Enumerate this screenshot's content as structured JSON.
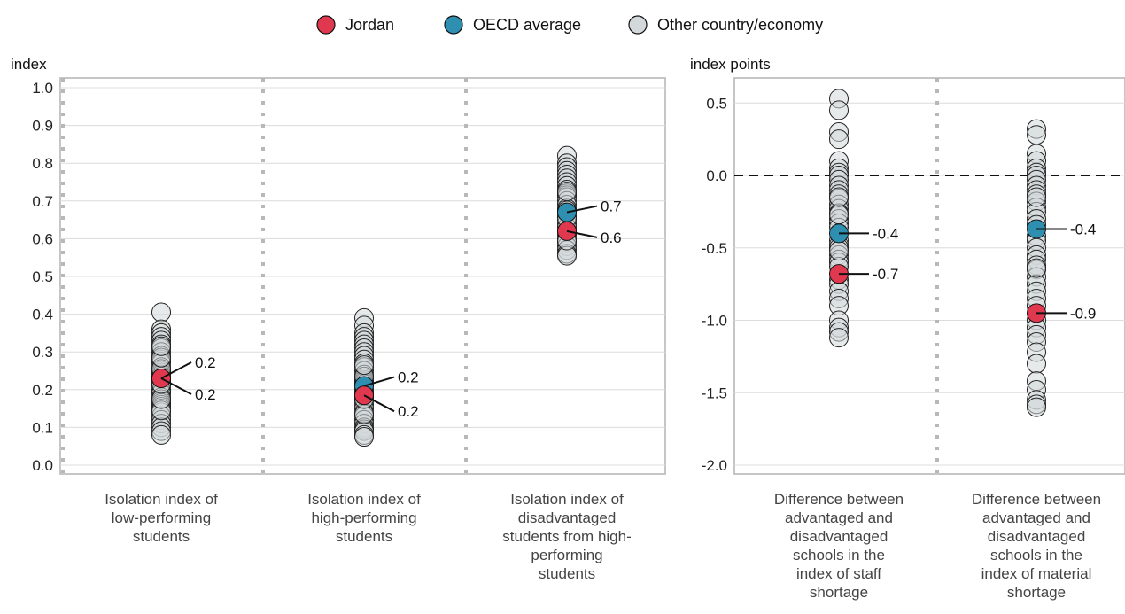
{
  "legend": [
    {
      "label": "Jordan",
      "color": "#e0394f"
    },
    {
      "label": "OECD average",
      "color": "#2f8fb0"
    },
    {
      "label": "Other country/economy",
      "color": "#d3d8da"
    }
  ],
  "colors": {
    "jordan": "#e0394f",
    "oecd": "#2f8fb0",
    "other": "#d3d8da",
    "other_stroke": "#222222"
  },
  "chart_data": [
    {
      "type": "scatter",
      "ylabel": "index",
      "ylim": [
        0,
        1.0
      ],
      "yticks": [
        "0.0",
        "0.1",
        "0.2",
        "0.3",
        "0.4",
        "0.5",
        "0.6",
        "0.7",
        "0.8",
        "0.9",
        "1.0"
      ],
      "grid": true,
      "categories": [
        "Isolation index of low-performing students",
        "Isolation index of high-performing students",
        "Isolation index of disadvantaged students from high-performing students"
      ],
      "category_lines": [
        [
          "Isolation index of",
          "low-performing",
          "students"
        ],
        [
          "Isolation index of",
          "high-performing",
          "students"
        ],
        [
          "Isolation index of",
          "disadvantaged",
          "students from high-",
          "performing",
          "students"
        ]
      ],
      "series": [
        {
          "name": "Jordan",
          "values": [
            0.23,
            0.185,
            0.62
          ],
          "labels": [
            "0.2",
            "0.2",
            "0.6"
          ]
        },
        {
          "name": "OECD average",
          "values": [
            0.23,
            0.21,
            0.67
          ],
          "labels": [
            "0.2",
            "0.2",
            "0.7"
          ]
        }
      ],
      "others": [
        [
          0.405,
          0.36,
          0.35,
          0.34,
          0.33,
          0.32,
          0.31,
          0.3,
          0.29,
          0.28,
          0.275,
          0.27,
          0.26,
          0.25,
          0.245,
          0.24,
          0.235,
          0.225,
          0.22,
          0.21,
          0.2,
          0.195,
          0.19,
          0.18,
          0.17,
          0.165,
          0.16,
          0.155,
          0.15,
          0.14,
          0.13,
          0.12,
          0.11,
          0.1,
          0.09,
          0.08,
          0.145,
          0.175,
          0.215,
          0.255,
          0.285,
          0.315
        ],
        [
          0.39,
          0.37,
          0.35,
          0.34,
          0.33,
          0.32,
          0.31,
          0.3,
          0.29,
          0.28,
          0.27,
          0.26,
          0.25,
          0.24,
          0.23,
          0.225,
          0.22,
          0.215,
          0.2,
          0.195,
          0.19,
          0.18,
          0.17,
          0.16,
          0.15,
          0.14,
          0.13,
          0.12,
          0.11,
          0.1,
          0.095,
          0.09,
          0.08,
          0.075,
          0.135,
          0.175,
          0.235,
          0.265
        ],
        [
          0.82,
          0.8,
          0.79,
          0.78,
          0.77,
          0.76,
          0.75,
          0.74,
          0.73,
          0.72,
          0.715,
          0.71,
          0.7,
          0.69,
          0.68,
          0.675,
          0.66,
          0.65,
          0.64,
          0.63,
          0.62,
          0.61,
          0.6,
          0.59,
          0.58,
          0.57,
          0.56,
          0.555,
          0.725,
          0.655,
          0.595
        ]
      ]
    },
    {
      "type": "scatter",
      "ylabel": "index points",
      "ylim": [
        -2.0,
        0.65
      ],
      "yticks": [
        "0.5",
        "0.0",
        "-0.5",
        "-1.0",
        "-1.5",
        "-2.0"
      ],
      "reference_line": 0,
      "grid": true,
      "categories": [
        "Difference between advantaged and disadvantaged schools in the index of staff shortage",
        "Difference between advantaged and disadvantaged schools in the index of material shortage"
      ],
      "category_lines": [
        [
          "Difference between",
          "advantaged and",
          "disadvantaged",
          "schools in the",
          "index of staff",
          "shortage"
        ],
        [
          "Difference between",
          "advantaged and",
          "disadvantaged",
          "schools in the",
          "index of material",
          "shortage"
        ]
      ],
      "series": [
        {
          "name": "Jordan",
          "values": [
            -0.68,
            -0.95
          ],
          "labels": [
            "-0.7",
            "-0.9"
          ]
        },
        {
          "name": "OECD average",
          "values": [
            -0.4,
            -0.37
          ],
          "labels": [
            "-0.4",
            "-0.4"
          ]
        }
      ],
      "others": [
        [
          0.53,
          0.45,
          0.3,
          0.25,
          0.1,
          0.05,
          0.02,
          0.0,
          -0.03,
          -0.07,
          -0.1,
          -0.13,
          -0.16,
          -0.2,
          -0.23,
          -0.26,
          -0.3,
          -0.33,
          -0.36,
          -0.45,
          -0.48,
          -0.5,
          -0.55,
          -0.58,
          -0.6,
          -0.63,
          -0.72,
          -0.75,
          -0.8,
          -0.85,
          -0.9,
          -1.0,
          -1.05,
          -1.08,
          -1.12,
          -0.27,
          -0.15,
          -0.52
        ],
        [
          0.32,
          0.28,
          0.15,
          0.1,
          0.05,
          0.02,
          0.0,
          -0.03,
          -0.07,
          -0.1,
          -0.13,
          -0.18,
          -0.22,
          -0.25,
          -0.3,
          -0.34,
          -0.42,
          -0.45,
          -0.5,
          -0.55,
          -0.58,
          -0.62,
          -0.65,
          -0.7,
          -0.75,
          -0.8,
          -0.85,
          -0.9,
          -1.0,
          -1.05,
          -1.1,
          -1.15,
          -1.22,
          -1.3,
          -1.42,
          -1.48,
          -1.55,
          -1.58,
          -1.6,
          -0.64,
          -0.15
        ]
      ]
    }
  ]
}
